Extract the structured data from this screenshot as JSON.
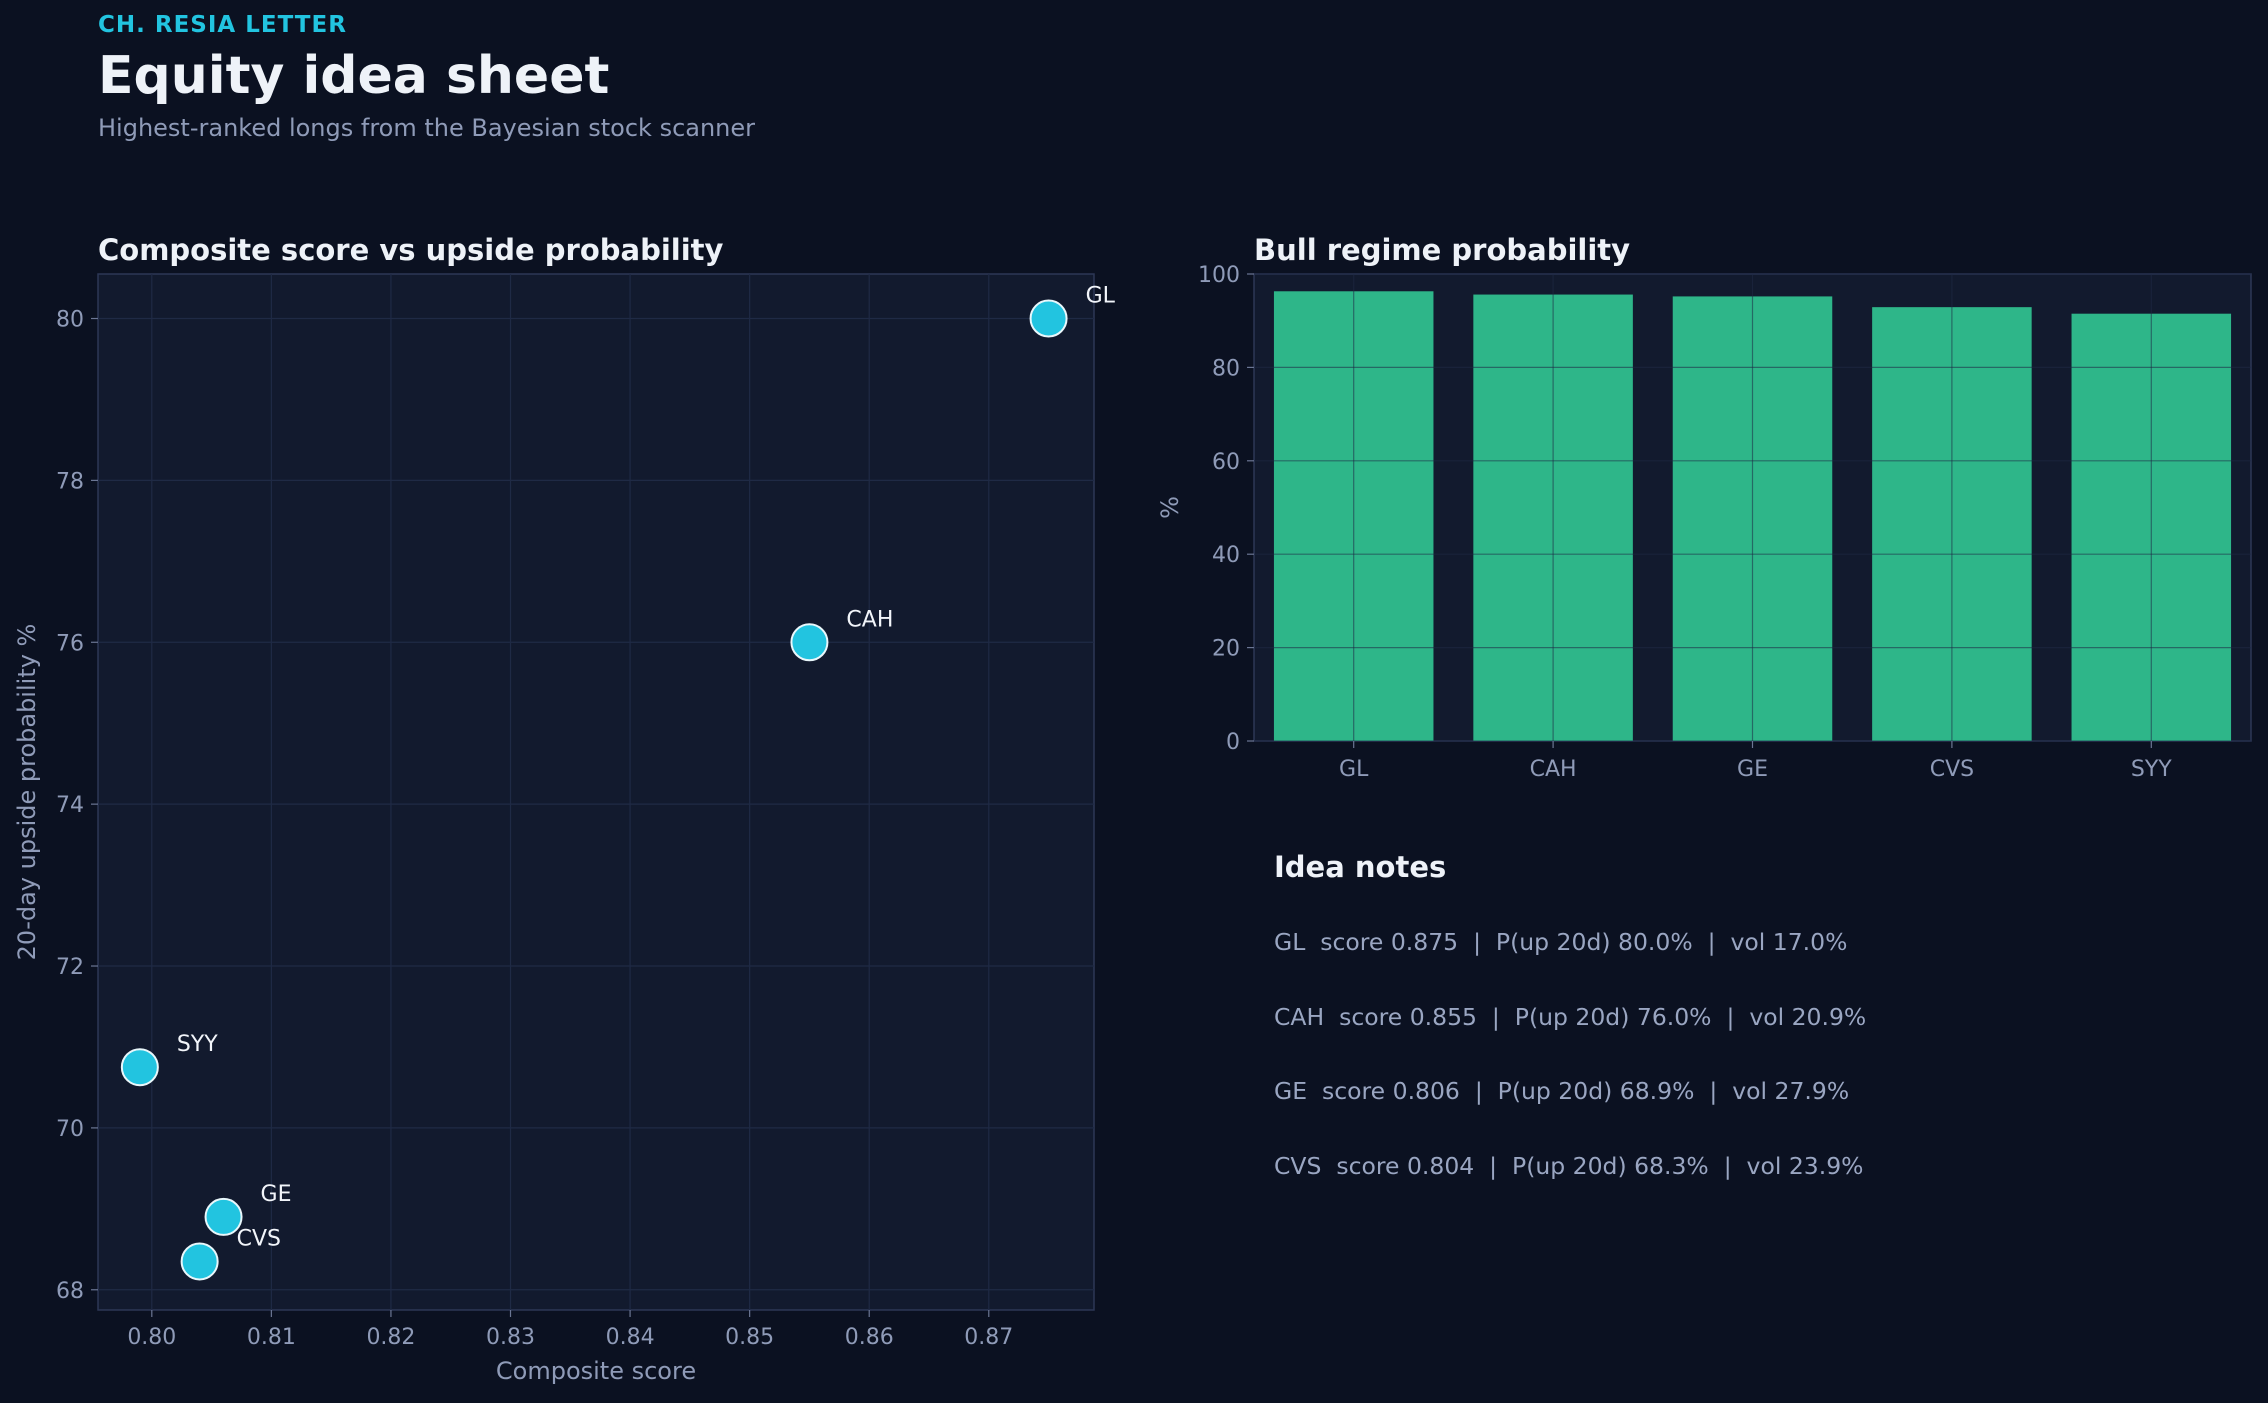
{
  "header": {
    "eyebrow": "CH. RESIA LETTER",
    "title": "Equity idea sheet",
    "subtitle": "Highest-ranked longs from the Bayesian stock scanner"
  },
  "colors": {
    "background": "#0b1121",
    "panel": "#121a2e",
    "accent": "#22c4e0",
    "bar": "#2eb689",
    "text": "#eef2f8",
    "muted": "#8f9bb8"
  },
  "chart_data": [
    {
      "type": "scatter",
      "title": "Composite score vs upside probability",
      "xlabel": "Composite score",
      "ylabel": "20-day upside probability %",
      "xlim": [
        0.7955,
        0.8788
      ],
      "ylim": [
        67.75,
        80.55
      ],
      "xticks": [
        0.8,
        0.81,
        0.82,
        0.83,
        0.84,
        0.85,
        0.86,
        0.87
      ],
      "xtick_labels": [
        "0.80",
        "0.81",
        "0.82",
        "0.83",
        "0.84",
        "0.85",
        "0.86",
        "0.87"
      ],
      "yticks": [
        68,
        70,
        72,
        74,
        76,
        78,
        80
      ],
      "ytick_labels": [
        "68",
        "70",
        "72",
        "74",
        "76",
        "78",
        "80"
      ],
      "grid": true,
      "points": [
        {
          "label": "GL",
          "x": 0.875,
          "y": 80.0
        },
        {
          "label": "CAH",
          "x": 0.855,
          "y": 76.0
        },
        {
          "label": "SYY",
          "x": 0.799,
          "y": 70.75
        },
        {
          "label": "GE",
          "x": 0.806,
          "y": 68.9
        },
        {
          "label": "CVS",
          "x": 0.804,
          "y": 68.35
        }
      ]
    },
    {
      "type": "bar",
      "title": "Bull regime probability",
      "xlabel": "",
      "ylabel": "%",
      "ylim": [
        0,
        100
      ],
      "yticks": [
        0,
        20,
        40,
        60,
        80,
        100
      ],
      "ytick_labels": [
        "0",
        "20",
        "40",
        "60",
        "80",
        "100"
      ],
      "grid": true,
      "categories": [
        "GL",
        "CAH",
        "GE",
        "CVS",
        "SYY"
      ],
      "values": [
        96.3,
        95.6,
        95.2,
        92.9,
        91.5
      ]
    }
  ],
  "notes": {
    "title": "Idea notes",
    "lines": [
      "GL  score 0.875  |  P(up 20d) 80.0%  |  vol 17.0%",
      "CAH  score 0.855  |  P(up 20d) 76.0%  |  vol 20.9%",
      "GE  score 0.806  |  P(up 20d) 68.9%  |  vol 27.9%",
      "CVS  score 0.804  |  P(up 20d) 68.3%  |  vol 23.9%"
    ]
  }
}
